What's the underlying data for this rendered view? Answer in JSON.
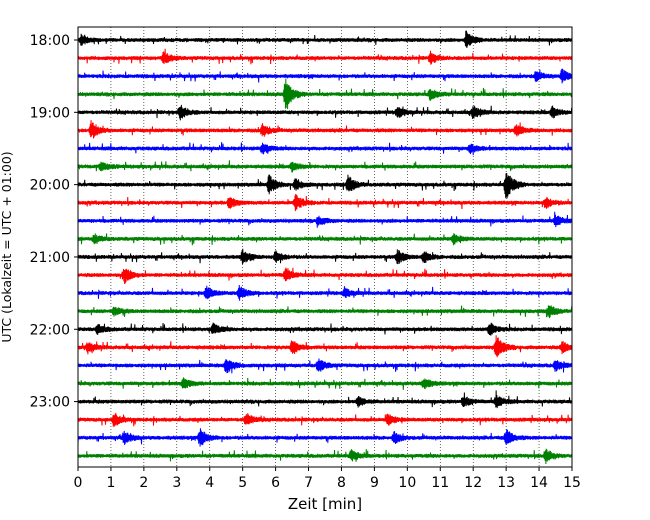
{
  "chart_data": {
    "type": "line",
    "title": "",
    "xlabel": "Zeit  [min]",
    "ylabel": "UTC (Lokalzeit = UTC + 01:00)",
    "xlim": [
      0,
      15
    ],
    "xticks": [
      "0",
      "1",
      "2",
      "3",
      "4",
      "5",
      "6",
      "7",
      "8",
      "9",
      "10",
      "11",
      "12",
      "13",
      "14",
      "15"
    ],
    "yticks": [
      "18:00",
      "19:00",
      "20:00",
      "21:00",
      "22:00",
      "23:00"
    ],
    "grid": "vertical dotted at each minute",
    "colors": [
      "#000000",
      "#ff0000",
      "#0000ff",
      "#008000"
    ],
    "rows": [
      {
        "time": "18:00",
        "color": "#000000",
        "events": [
          [
            11.8,
            0.9
          ],
          [
            0.1,
            0.5
          ]
        ]
      },
      {
        "time": "18:15",
        "color": "#ff0000",
        "events": [
          [
            2.6,
            0.7
          ],
          [
            10.7,
            0.6
          ]
        ]
      },
      {
        "time": "18:30",
        "color": "#0000ff",
        "events": [
          [
            14.7,
            0.7
          ],
          [
            13.9,
            0.5
          ]
        ]
      },
      {
        "time": "18:45",
        "color": "#008000",
        "events": [
          [
            6.3,
            1.7
          ],
          [
            10.7,
            0.6
          ]
        ]
      },
      {
        "time": "19:00",
        "color": "#000000",
        "events": [
          [
            3.1,
            0.8
          ],
          [
            12.0,
            0.7
          ],
          [
            9.7,
            0.6
          ],
          [
            14.4,
            0.6
          ]
        ]
      },
      {
        "time": "19:15",
        "color": "#ff0000",
        "events": [
          [
            0.4,
            1.0
          ],
          [
            5.6,
            0.7
          ],
          [
            13.3,
            0.6
          ]
        ]
      },
      {
        "time": "19:30",
        "color": "#0000ff",
        "events": [
          [
            5.6,
            0.6
          ],
          [
            11.9,
            0.5
          ]
        ]
      },
      {
        "time": "19:45",
        "color": "#008000",
        "events": [
          [
            0.7,
            0.5
          ],
          [
            6.5,
            0.5
          ]
        ]
      },
      {
        "time": "20:00",
        "color": "#000000",
        "events": [
          [
            13.0,
            1.7
          ],
          [
            5.8,
            1.0
          ],
          [
            8.2,
            1.0
          ],
          [
            6.6,
            0.6
          ]
        ]
      },
      {
        "time": "20:15",
        "color": "#ff0000",
        "events": [
          [
            6.6,
            0.9
          ],
          [
            4.6,
            0.6
          ],
          [
            14.2,
            0.6
          ]
        ]
      },
      {
        "time": "20:30",
        "color": "#0000ff",
        "events": [
          [
            14.5,
            0.6
          ],
          [
            7.3,
            0.5
          ]
        ]
      },
      {
        "time": "20:45",
        "color": "#008000",
        "events": [
          [
            0.5,
            0.5
          ],
          [
            11.4,
            0.5
          ]
        ]
      },
      {
        "time": "21:00",
        "color": "#000000",
        "events": [
          [
            9.7,
            0.8
          ],
          [
            5.0,
            0.7
          ],
          [
            6.0,
            0.6
          ],
          [
            10.5,
            0.6
          ]
        ]
      },
      {
        "time": "21:15",
        "color": "#ff0000",
        "events": [
          [
            1.4,
            0.9
          ],
          [
            6.3,
            0.7
          ]
        ]
      },
      {
        "time": "21:30",
        "color": "#0000ff",
        "events": [
          [
            4.9,
            0.8
          ],
          [
            3.9,
            0.7
          ],
          [
            8.1,
            0.5
          ]
        ]
      },
      {
        "time": "21:45",
        "color": "#008000",
        "events": [
          [
            14.3,
            0.7
          ],
          [
            1.1,
            0.5
          ]
        ]
      },
      {
        "time": "22:00",
        "color": "#000000",
        "events": [
          [
            12.5,
            0.7
          ],
          [
            4.1,
            0.6
          ],
          [
            0.6,
            0.5
          ]
        ]
      },
      {
        "time": "22:15",
        "color": "#ff0000",
        "events": [
          [
            12.7,
            1.3
          ],
          [
            6.5,
            0.8
          ],
          [
            0.3,
            0.6
          ],
          [
            14.7,
            0.6
          ]
        ]
      },
      {
        "time": "22:30",
        "color": "#0000ff",
        "events": [
          [
            4.5,
            0.9
          ],
          [
            7.3,
            0.7
          ],
          [
            14.5,
            0.6
          ]
        ]
      },
      {
        "time": "22:45",
        "color": "#008000",
        "events": [
          [
            3.2,
            0.6
          ],
          [
            10.5,
            0.6
          ]
        ]
      },
      {
        "time": "23:00",
        "color": "#000000",
        "events": [
          [
            12.7,
            0.7
          ],
          [
            11.7,
            0.6
          ],
          [
            8.5,
            0.5
          ]
        ]
      },
      {
        "time": "23:15",
        "color": "#ff0000",
        "events": [
          [
            1.1,
            0.7
          ],
          [
            5.1,
            0.7
          ],
          [
            9.4,
            0.6
          ]
        ]
      },
      {
        "time": "23:30",
        "color": "#0000ff",
        "events": [
          [
            3.7,
            1.0
          ],
          [
            13.0,
            0.9
          ],
          [
            1.4,
            0.7
          ],
          [
            9.6,
            0.6
          ]
        ]
      },
      {
        "time": "23:45",
        "color": "#008000",
        "events": [
          [
            14.2,
            0.7
          ],
          [
            8.3,
            0.6
          ]
        ]
      }
    ]
  }
}
